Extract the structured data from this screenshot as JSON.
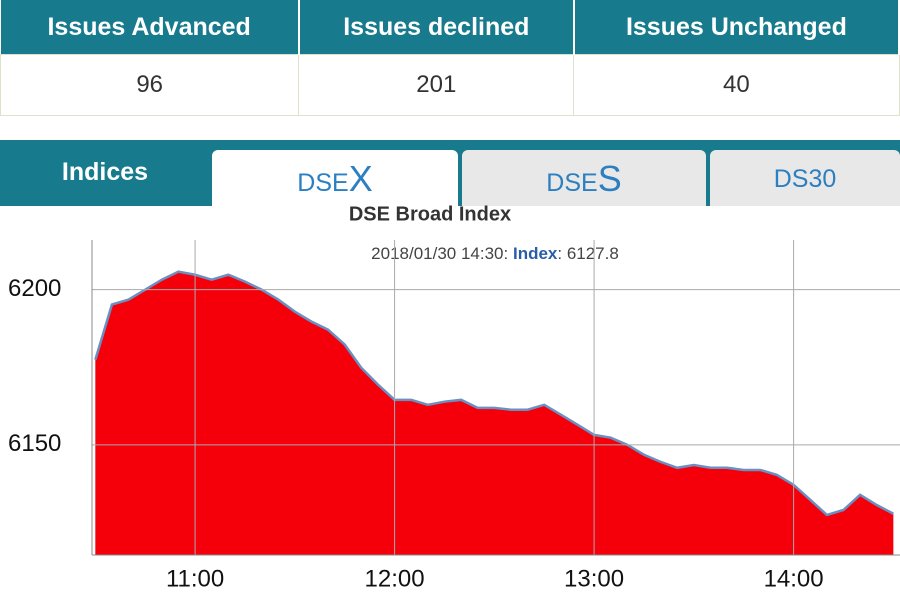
{
  "table": {
    "headers": [
      "Issues Advanced",
      "Issues declined",
      "Issues Unchanged"
    ],
    "rows": [
      [
        "96",
        "201",
        "40"
      ]
    ]
  },
  "tabs": {
    "label": "Indices",
    "items": [
      {
        "prefix": "DSE",
        "suffix": "X"
      },
      {
        "prefix": "DSE",
        "suffix": "S"
      },
      {
        "prefix": "DS30",
        "suffix": ""
      }
    ]
  },
  "chart_data": {
    "type": "area",
    "title": "DSE Broad Index",
    "annotation": {
      "time": "2018/01/30 14:30:",
      "label": "Index",
      "rest": ": 6127.8"
    },
    "x": [
      630,
      635,
      640,
      645,
      650,
      655,
      660,
      665,
      670,
      675,
      680,
      685,
      690,
      695,
      700,
      705,
      710,
      715,
      720,
      725,
      730,
      735,
      740,
      745,
      750,
      755,
      760,
      765,
      770,
      775,
      780,
      785,
      790,
      795,
      800,
      805,
      810,
      815,
      820,
      825,
      830,
      835,
      840,
      845,
      850,
      855,
      860,
      865,
      870
    ],
    "values": [
      6177.4,
      6195.2,
      6196.8,
      6200,
      6203.2,
      6205.8,
      6204.8,
      6203.2,
      6204.8,
      6202.6,
      6200,
      6196.8,
      6192.9,
      6189.7,
      6187.1,
      6182.3,
      6174.8,
      6169.4,
      6164.5,
      6164.5,
      6162.9,
      6163.9,
      6164.5,
      6161.9,
      6161.9,
      6161.3,
      6161.3,
      6162.9,
      6159.7,
      6156.5,
      6153.2,
      6152.3,
      6150,
      6146.8,
      6144.5,
      6142.6,
      6143.5,
      6142.6,
      6142.6,
      6141.9,
      6141.9,
      6140.3,
      6137.1,
      6132.3,
      6127.4,
      6129,
      6133.9,
      6130.6,
      6127.8
    ],
    "fill": "#f5000a",
    "line_color": "#6b8fc0",
    "xlim": [
      629,
      872
    ],
    "ylim": [
      6114.5,
      6216
    ],
    "xticks": [
      {
        "value": 660,
        "label": "11:00"
      },
      {
        "value": 720,
        "label": "12:00"
      },
      {
        "value": 780,
        "label": "13:00"
      },
      {
        "value": 840,
        "label": "14:00"
      }
    ],
    "yticks": [
      6150,
      6200
    ],
    "grid": true
  }
}
